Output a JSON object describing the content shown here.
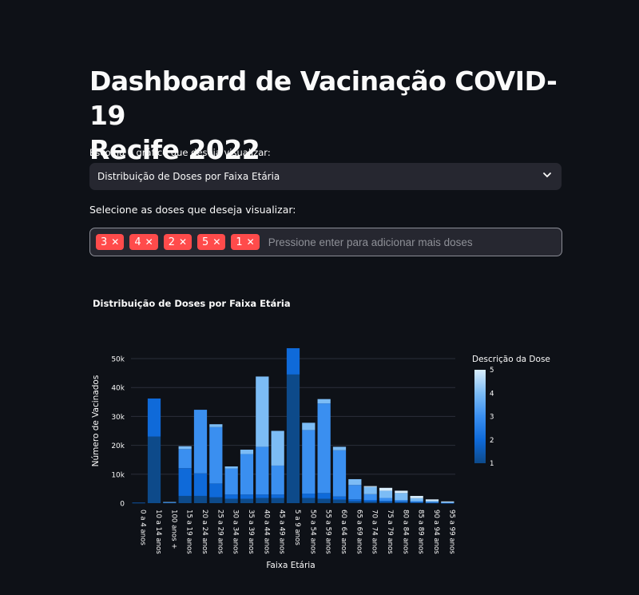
{
  "header": {
    "title_line1": "Dashboard de Vacinação COVID-19",
    "title_line2": "Recife 2022"
  },
  "chart_selector": {
    "label": "Escolha o gráfico que deseja visualizar:",
    "value": "Distribuição de Doses por Faixa Etária",
    "icon": "chevron-down-icon"
  },
  "dose_selector": {
    "label": "Selecione as doses que deseja visualizar:",
    "chips": [
      "3",
      "4",
      "2",
      "5",
      "1"
    ],
    "placeholder": "Pressione enter para adicionar mais doses",
    "chip_color": "#ff4b4b",
    "remove_icon": "close-icon"
  },
  "chart_data": {
    "type": "bar",
    "stacked": true,
    "title": "Distribuição de Doses por Faixa Etária",
    "xlabel": "Faixa Etária",
    "ylabel": "Número de Vacinados",
    "ylim": [
      0,
      54000
    ],
    "yticks": [
      0,
      10000,
      20000,
      30000,
      40000,
      50000
    ],
    "ytick_labels": [
      "0",
      "10k",
      "20k",
      "30k",
      "40k",
      "50k"
    ],
    "grid": true,
    "colorbar": {
      "title": "Descrição da Dose",
      "min": 1,
      "max": 5,
      "ticks": [
        "1",
        "2",
        "3",
        "4",
        "5"
      ],
      "colors": [
        "#0d4a8a",
        "#0f6ad9",
        "#3a8ff0",
        "#7cbcf5",
        "#d9eefd"
      ]
    },
    "categories": [
      "0 a 4 anos",
      "10 a 14 anos",
      "100 anos +",
      "15 a 19 anos",
      "20 a 24 anos",
      "25 a 29 anos",
      "30 a 34 anos",
      "35 a 39 anos",
      "40 a 44 anos",
      "45 a 49 anos",
      "5 a 9 anos",
      "50 a 54 anos",
      "55 a 59 anos",
      "60 a 64 anos",
      "65 a 69 anos",
      "70 a 74 anos",
      "75 a 79 anos",
      "80 a 84 anos",
      "85 a 89 anos",
      "90 a 94 anos",
      "95 a 99 anos"
    ],
    "series": [
      {
        "dose": 1,
        "values": [
          100,
          23000,
          150,
          2500,
          2500,
          2000,
          1500,
          1500,
          1800,
          1800,
          44500,
          1800,
          1500,
          1200,
          600,
          500,
          400,
          300,
          200,
          100,
          50
        ]
      },
      {
        "dose": 2,
        "values": [
          50,
          13200,
          100,
          9600,
          7800,
          4800,
          1500,
          1500,
          1200,
          1200,
          9100,
          1500,
          2000,
          1100,
          700,
          600,
          400,
          300,
          200,
          100,
          50
        ]
      },
      {
        "dose": 3,
        "values": [
          0,
          0,
          50,
          6600,
          22000,
          19500,
          9000,
          14000,
          16500,
          10000,
          0,
          22000,
          31000,
          16000,
          5000,
          2000,
          1000,
          500,
          300,
          200,
          50
        ]
      },
      {
        "dose": 4,
        "values": [
          0,
          0,
          100,
          1000,
          0,
          1000,
          700,
          1500,
          24300,
          12000,
          0,
          2500,
          1500,
          1200,
          2000,
          2500,
          2500,
          2400,
          1000,
          400,
          250
        ]
      },
      {
        "dose": 5,
        "values": [
          0,
          0,
          0,
          0,
          0,
          0,
          0,
          0,
          0,
          0,
          0,
          0,
          0,
          0,
          0,
          300,
          1000,
          800,
          800,
          500,
          200
        ]
      }
    ]
  }
}
